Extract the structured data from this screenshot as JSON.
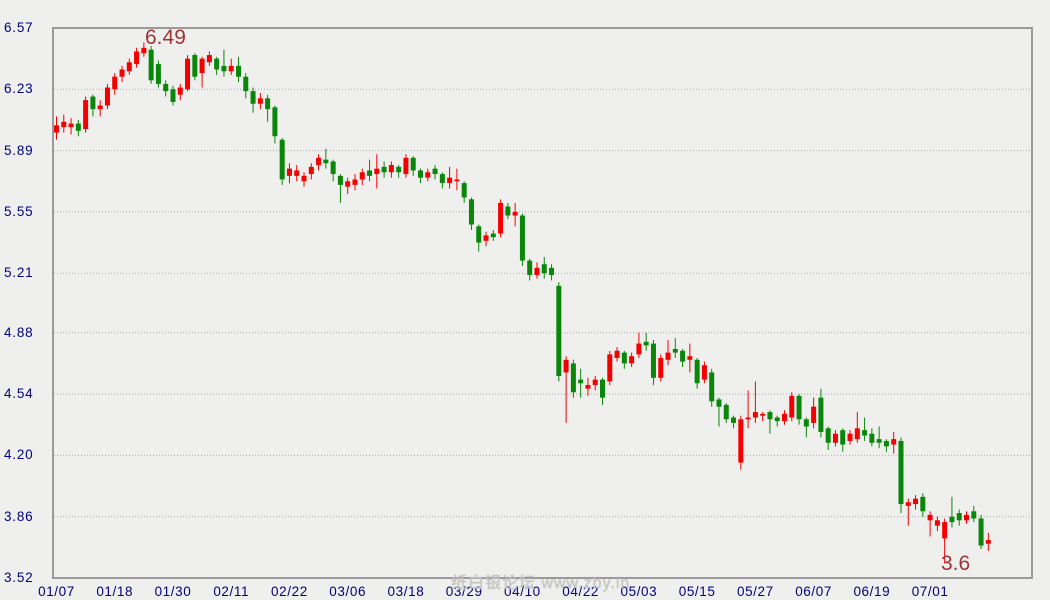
{
  "page": {
    "background": "#efefee"
  },
  "watermark": {
    "text": "纸白银论坛 www.zby.in"
  },
  "annotations": {
    "high_label": "6.49",
    "low_label": "3.6"
  },
  "chart_data": {
    "type": "candlestick",
    "title": "",
    "xlabel": "",
    "ylabel": "",
    "ylim": [
      3.52,
      6.57
    ],
    "grid": "horizontal-dotted",
    "legend": "none",
    "y_tick_labels": [
      "6.57",
      "6.23",
      "5.89",
      "5.55",
      "5.21",
      "4.88",
      "4.54",
      "4.20",
      "3.86",
      "3.52"
    ],
    "x_tick_labels": [
      "01/07",
      "01/18",
      "01/30",
      "02/11",
      "02/22",
      "03/06",
      "03/18",
      "03/29",
      "04/10",
      "04/22",
      "05/03",
      "05/15",
      "05/27",
      "06/07",
      "06/19",
      "07/01"
    ],
    "x_tick_every": 8,
    "colors": {
      "up_candle": "#f40000",
      "down_candle": "#0a870a",
      "axis_text": "#000080",
      "annotation_text": "#a03434",
      "frame": "#9a9a9a",
      "gridline": "#ababab",
      "background": "#efefee",
      "watermark": "#c6c6c4"
    },
    "high_point": {
      "value": 6.49,
      "candle_index": 12
    },
    "low_point": {
      "value": 3.6,
      "candle_index": 122
    },
    "candles_format": [
      "open",
      "high",
      "low",
      "close"
    ],
    "candles": [
      [
        5.99,
        6.08,
        5.95,
        6.03
      ],
      [
        6.02,
        6.09,
        5.99,
        6.05
      ],
      [
        6.02,
        6.07,
        5.98,
        6.04
      ],
      [
        6.04,
        6.06,
        5.97,
        6.0
      ],
      [
        6.01,
        6.19,
        5.99,
        6.17
      ],
      [
        6.19,
        6.2,
        6.08,
        6.12
      ],
      [
        6.12,
        6.17,
        6.08,
        6.14
      ],
      [
        6.14,
        6.26,
        6.12,
        6.24
      ],
      [
        6.23,
        6.32,
        6.2,
        6.3
      ],
      [
        6.3,
        6.36,
        6.27,
        6.34
      ],
      [
        6.33,
        6.4,
        6.31,
        6.38
      ],
      [
        6.37,
        6.46,
        6.35,
        6.44
      ],
      [
        6.43,
        6.49,
        6.41,
        6.46
      ],
      [
        6.45,
        6.47,
        6.26,
        6.28
      ],
      [
        6.37,
        6.39,
        6.24,
        6.26
      ],
      [
        6.26,
        6.28,
        6.19,
        6.22
      ],
      [
        6.23,
        6.25,
        6.14,
        6.16
      ],
      [
        6.2,
        6.26,
        6.17,
        6.24
      ],
      [
        6.23,
        6.42,
        6.22,
        6.4
      ],
      [
        6.42,
        6.43,
        6.28,
        6.3
      ],
      [
        6.32,
        6.41,
        6.24,
        6.4
      ],
      [
        6.38,
        6.44,
        6.36,
        6.42
      ],
      [
        6.4,
        6.41,
        6.31,
        6.34
      ],
      [
        6.36,
        6.45,
        6.3,
        6.33
      ],
      [
        6.33,
        6.4,
        6.31,
        6.36
      ],
      [
        6.36,
        6.41,
        6.27,
        6.3
      ],
      [
        6.3,
        6.32,
        6.18,
        6.22
      ],
      [
        6.22,
        6.24,
        6.1,
        6.15
      ],
      [
        6.15,
        6.21,
        6.12,
        6.18
      ],
      [
        6.18,
        6.2,
        6.05,
        6.12
      ],
      [
        6.13,
        6.14,
        5.93,
        5.97
      ],
      [
        5.95,
        5.96,
        5.7,
        5.73
      ],
      [
        5.75,
        5.82,
        5.71,
        5.79
      ],
      [
        5.75,
        5.81,
        5.72,
        5.78
      ],
      [
        5.72,
        5.77,
        5.69,
        5.75
      ],
      [
        5.76,
        5.82,
        5.73,
        5.8
      ],
      [
        5.81,
        5.87,
        5.78,
        5.85
      ],
      [
        5.84,
        5.9,
        5.79,
        5.82
      ],
      [
        5.83,
        5.84,
        5.72,
        5.76
      ],
      [
        5.75,
        5.76,
        5.6,
        5.7
      ],
      [
        5.69,
        5.74,
        5.65,
        5.72
      ],
      [
        5.7,
        5.76,
        5.67,
        5.73
      ],
      [
        5.73,
        5.79,
        5.7,
        5.77
      ],
      [
        5.78,
        5.84,
        5.72,
        5.75
      ],
      [
        5.76,
        5.87,
        5.68,
        5.79
      ],
      [
        5.8,
        5.83,
        5.74,
        5.77
      ],
      [
        5.77,
        5.83,
        5.74,
        5.81
      ],
      [
        5.8,
        5.81,
        5.74,
        5.77
      ],
      [
        5.76,
        5.87,
        5.74,
        5.85
      ],
      [
        5.85,
        5.86,
        5.75,
        5.78
      ],
      [
        5.78,
        5.79,
        5.71,
        5.74
      ],
      [
        5.74,
        5.79,
        5.72,
        5.77
      ],
      [
        5.79,
        5.81,
        5.73,
        5.76
      ],
      [
        5.76,
        5.77,
        5.68,
        5.71
      ],
      [
        5.71,
        5.8,
        5.68,
        5.74
      ],
      [
        5.72,
        5.79,
        5.67,
        5.73
      ],
      [
        5.71,
        5.72,
        5.6,
        5.63
      ],
      [
        5.62,
        5.63,
        5.45,
        5.48
      ],
      [
        5.47,
        5.48,
        5.33,
        5.38
      ],
      [
        5.39,
        5.44,
        5.36,
        5.42
      ],
      [
        5.43,
        5.45,
        5.39,
        5.41
      ],
      [
        5.43,
        5.62,
        5.41,
        5.6
      ],
      [
        5.58,
        5.6,
        5.51,
        5.53
      ],
      [
        5.53,
        5.6,
        5.47,
        5.55
      ],
      [
        5.53,
        5.54,
        5.25,
        5.28
      ],
      [
        5.28,
        5.29,
        5.17,
        5.2
      ],
      [
        5.2,
        5.27,
        5.18,
        5.24
      ],
      [
        5.26,
        5.3,
        5.18,
        5.21
      ],
      [
        5.24,
        5.26,
        5.17,
        5.2
      ],
      [
        5.14,
        5.16,
        4.61,
        4.64
      ],
      [
        4.66,
        4.75,
        4.38,
        4.73
      ],
      [
        4.71,
        4.73,
        4.52,
        4.55
      ],
      [
        4.62,
        4.68,
        4.52,
        4.6
      ],
      [
        4.57,
        4.63,
        4.53,
        4.59
      ],
      [
        4.59,
        4.64,
        4.56,
        4.62
      ],
      [
        4.62,
        4.63,
        4.48,
        4.52
      ],
      [
        4.61,
        4.78,
        4.59,
        4.76
      ],
      [
        4.74,
        4.8,
        4.72,
        4.78
      ],
      [
        4.77,
        4.78,
        4.68,
        4.71
      ],
      [
        4.71,
        4.77,
        4.69,
        4.75
      ],
      [
        4.76,
        4.88,
        4.74,
        4.82
      ],
      [
        4.83,
        4.88,
        4.78,
        4.81
      ],
      [
        4.82,
        4.84,
        4.59,
        4.63
      ],
      [
        4.63,
        4.76,
        4.61,
        4.74
      ],
      [
        4.73,
        4.84,
        4.7,
        4.77
      ],
      [
        4.79,
        4.85,
        4.74,
        4.77
      ],
      [
        4.78,
        4.79,
        4.69,
        4.72
      ],
      [
        4.73,
        4.82,
        4.66,
        4.75
      ],
      [
        4.73,
        4.74,
        4.57,
        4.6
      ],
      [
        4.62,
        4.72,
        4.6,
        4.7
      ],
      [
        4.66,
        4.68,
        4.47,
        4.5
      ],
      [
        4.51,
        4.52,
        4.36,
        4.47
      ],
      [
        4.48,
        4.49,
        4.38,
        4.4
      ],
      [
        4.41,
        4.42,
        4.35,
        4.38
      ],
      [
        4.16,
        4.42,
        4.12,
        4.4
      ],
      [
        4.4,
        4.56,
        4.35,
        4.41
      ],
      [
        4.41,
        4.61,
        4.38,
        4.44
      ],
      [
        4.42,
        4.44,
        4.39,
        4.43
      ],
      [
        4.44,
        4.45,
        4.32,
        4.4
      ],
      [
        4.41,
        4.42,
        4.36,
        4.39
      ],
      [
        4.39,
        4.45,
        4.37,
        4.43
      ],
      [
        4.41,
        4.55,
        4.39,
        4.53
      ],
      [
        4.53,
        4.54,
        4.37,
        4.4
      ],
      [
        4.4,
        4.41,
        4.3,
        4.36
      ],
      [
        4.38,
        4.52,
        4.35,
        4.47
      ],
      [
        4.52,
        4.57,
        4.3,
        4.33
      ],
      [
        4.35,
        4.36,
        4.23,
        4.27
      ],
      [
        4.27,
        4.34,
        4.25,
        4.32
      ],
      [
        4.34,
        4.35,
        4.22,
        4.26
      ],
      [
        4.28,
        4.34,
        4.26,
        4.32
      ],
      [
        4.29,
        4.44,
        4.27,
        4.35
      ],
      [
        4.34,
        4.41,
        4.28,
        4.31
      ],
      [
        4.32,
        4.35,
        4.25,
        4.27
      ],
      [
        4.29,
        4.36,
        4.24,
        4.27
      ],
      [
        4.28,
        4.29,
        4.22,
        4.25
      ],
      [
        4.26,
        4.33,
        4.21,
        4.29
      ],
      [
        4.28,
        4.3,
        3.88,
        3.93
      ],
      [
        3.92,
        3.96,
        3.81,
        3.94
      ],
      [
        3.93,
        3.98,
        3.9,
        3.96
      ],
      [
        3.97,
        3.99,
        3.86,
        3.89
      ],
      [
        3.84,
        3.89,
        3.75,
        3.87
      ],
      [
        3.81,
        3.86,
        3.78,
        3.84
      ],
      [
        3.74,
        3.85,
        3.6,
        3.83
      ],
      [
        3.86,
        3.97,
        3.8,
        3.83
      ],
      [
        3.88,
        3.9,
        3.81,
        3.84
      ],
      [
        3.84,
        3.89,
        3.82,
        3.87
      ],
      [
        3.89,
        3.92,
        3.83,
        3.85
      ],
      [
        3.85,
        3.87,
        3.68,
        3.7
      ],
      [
        3.71,
        3.77,
        3.67,
        3.73
      ]
    ]
  }
}
